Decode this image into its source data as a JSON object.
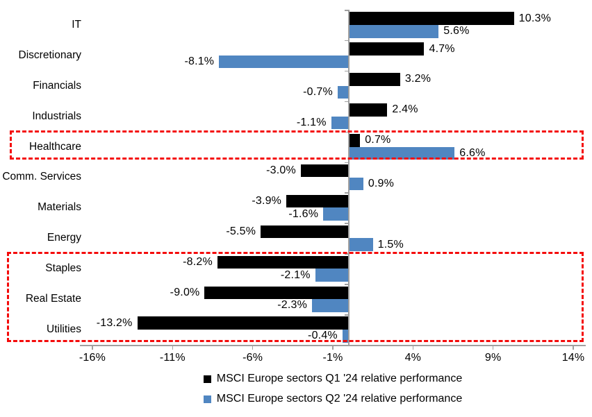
{
  "chart_data": {
    "type": "bar",
    "orientation": "horizontal",
    "title": "",
    "xlabel": "",
    "ylabel": "",
    "categories": [
      "IT",
      "Discretionary",
      "Financials",
      "Industrials",
      "Healthcare",
      "Comm. Services",
      "Materials",
      "Energy",
      "Staples",
      "Real Estate",
      "Utilities"
    ],
    "series": [
      {
        "name": "MSCI Europe sectors Q1 '24 relative performance",
        "color": "#000000",
        "values": [
          10.3,
          4.7,
          3.2,
          2.4,
          0.7,
          -3.0,
          -3.9,
          -5.5,
          -8.2,
          -9.0,
          -13.2
        ]
      },
      {
        "name": "MSCI Europe sectors Q2 '24 relative performance",
        "color": "#5086C1",
        "values": [
          5.6,
          -8.1,
          -0.7,
          -1.1,
          6.6,
          0.9,
          -1.6,
          1.5,
          -2.1,
          -2.3,
          -0.4
        ]
      }
    ],
    "value_labels": {
      "q1": [
        "10.3%",
        "4.7%",
        "3.2%",
        "2.4%",
        "0.7%",
        "-3.0%",
        "-3.9%",
        "-5.5%",
        "-8.2%",
        "-9.0%",
        "-13.2%"
      ],
      "q2": [
        "5.6%",
        "-8.1%",
        "-0.7%",
        "-1.1%",
        "6.6%",
        "0.9%",
        "-1.6%",
        "1.5%",
        "-2.1%",
        "-2.3%",
        "-0.4%"
      ]
    },
    "x_ticks": [
      -16,
      -11,
      -6,
      -1,
      4,
      9,
      14
    ],
    "x_tick_labels": [
      "-16%",
      "-11%",
      "-6%",
      "-1%",
      "4%",
      "9%",
      "14%"
    ],
    "xlim": [
      -16.65,
      14.65
    ],
    "grid": false,
    "legend_position": "bottom-center",
    "axis_color": "#a0a0a0",
    "highlight_color": "#F40B0B",
    "highlights": [
      {
        "categories": [
          "Healthcare"
        ]
      },
      {
        "categories": [
          "Staples",
          "Real Estate",
          "Utilities"
        ]
      }
    ]
  }
}
